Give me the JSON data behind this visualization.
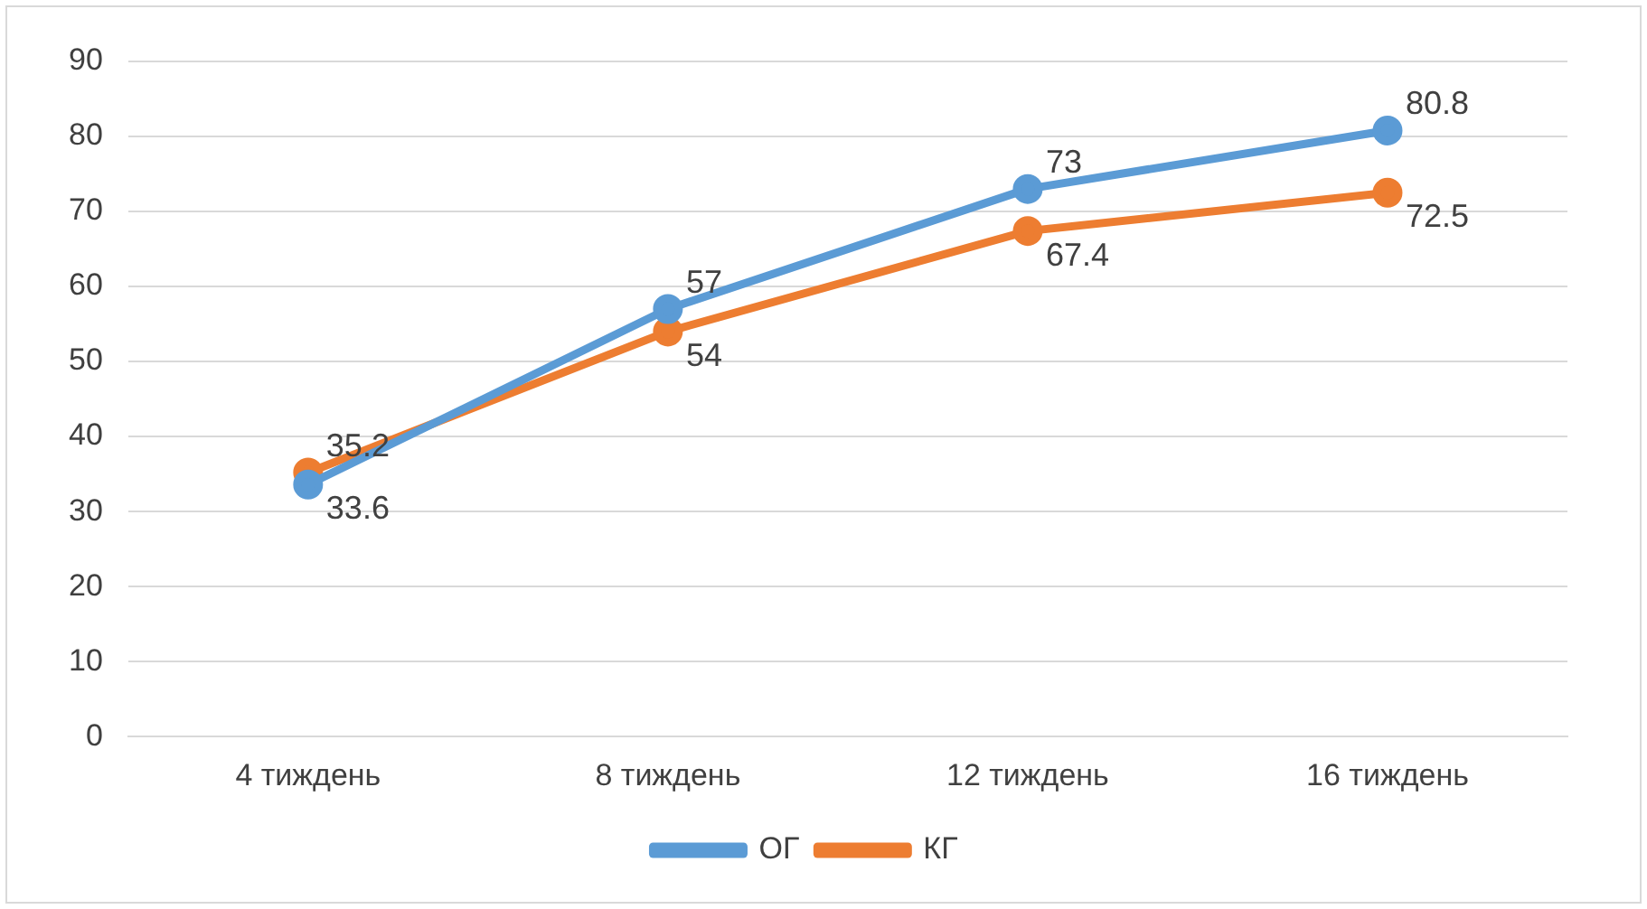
{
  "chart_data": {
    "type": "line",
    "categories": [
      "4 тиждень",
      "8 тиждень",
      "12 тиждень",
      "16 тиждень"
    ],
    "series": [
      {
        "name": "ОГ",
        "color": "#5b9bd5",
        "values": [
          33.6,
          57,
          73,
          80.8
        ]
      },
      {
        "name": "КГ",
        "color": "#ed7d31",
        "values": [
          35.2,
          54,
          67.4,
          72.5
        ]
      }
    ],
    "ylim": [
      0,
      90
    ],
    "yticks": [
      0,
      10,
      20,
      30,
      40,
      50,
      60,
      70,
      80,
      90
    ],
    "grid": "y",
    "legend": "bottom",
    "marker": "circle",
    "line_style": "solid",
    "data_labels": true
  }
}
